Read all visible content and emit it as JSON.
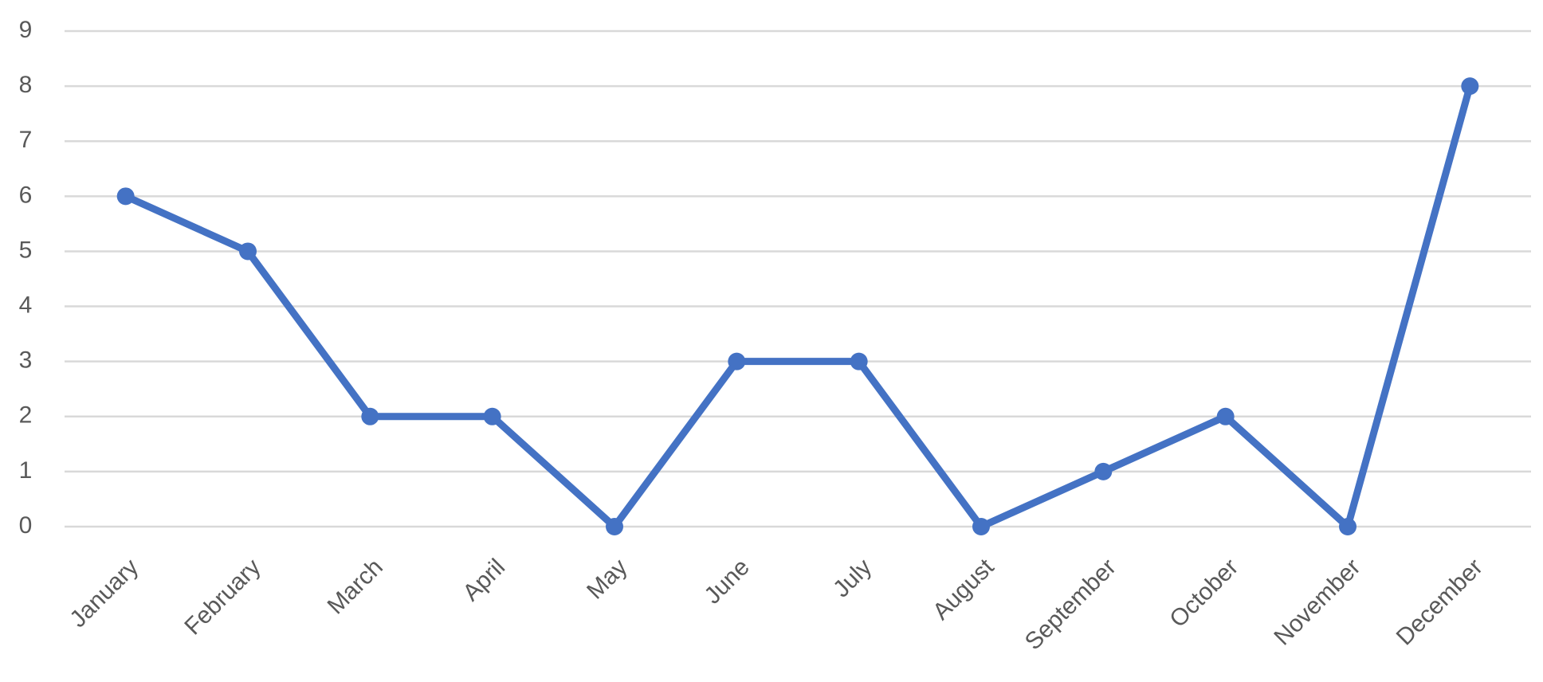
{
  "chart_data": {
    "type": "line",
    "categories": [
      "January",
      "February",
      "March",
      "April",
      "May",
      "June",
      "July",
      "August",
      "September",
      "October",
      "November",
      "December"
    ],
    "series": [
      {
        "color": "#4472c4",
        "values": [
          6,
          5,
          2,
          2,
          0,
          3,
          3,
          0,
          1,
          2,
          0,
          8
        ]
      }
    ],
    "ylim": [
      0,
      9
    ],
    "yticks": [
      0,
      1,
      2,
      3,
      4,
      5,
      6,
      7,
      8,
      9
    ],
    "grid": true,
    "markers": true
  }
}
